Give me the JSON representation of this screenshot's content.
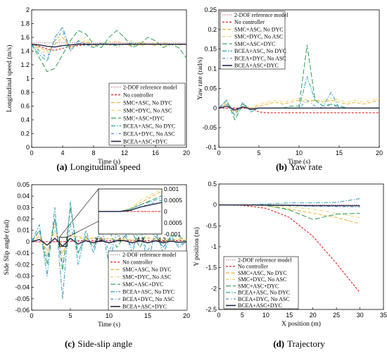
{
  "legend_labels": [
    "2-DOF reference model",
    "No controller",
    "SMC+ASC, No DYC",
    "SMC+DYC, No ASC",
    "SMC+ASC+DYC",
    "BCEA+ASC, No DYC",
    "BCEA+DYC, No ASC",
    "BCEA+ASC+DYC"
  ],
  "series_colors": [
    "#c06080",
    "#e02020",
    "#f0b030",
    "#f0d060",
    "#3aa860",
    "#2e9ec0",
    "#4a8fd0",
    "#202a48"
  ],
  "chart_data": [
    {
      "type": "line",
      "caption_tag": "(a)",
      "caption_text": "Longitudinal speed",
      "xlabel": "Time (s)",
      "ylabel": "Longitudinal speed (m/s)",
      "xlim": [
        0,
        20
      ],
      "ylim": [
        0,
        2
      ],
      "xticks": [
        "0",
        "4",
        "8",
        "12",
        "16",
        "20"
      ],
      "yticks": [
        "0",
        "0.2",
        "0.4",
        "0.6",
        "0.8",
        "1",
        "1.2",
        "1.4",
        "1.6",
        "1.8",
        "2"
      ],
      "legend_position": "lower-right",
      "x": [
        0,
        1,
        2,
        3,
        4,
        5,
        6,
        7,
        8,
        9,
        10,
        11,
        12,
        13,
        14,
        15,
        16,
        17,
        18,
        19,
        20
      ],
      "series": [
        {
          "values": [
            1.52,
            1.52,
            1.52,
            1.52,
            1.52,
            1.52,
            1.52,
            1.52,
            1.52,
            1.52,
            1.52,
            1.52,
            1.52,
            1.52,
            1.52,
            1.52,
            1.52,
            1.52,
            1.52,
            1.52,
            1.52
          ]
        },
        {
          "values": [
            1.5,
            1.47,
            1.43,
            1.41,
            1.44,
            1.47,
            1.48,
            1.49,
            1.5,
            1.5,
            1.5,
            1.5,
            1.5,
            1.5,
            1.5,
            1.5,
            1.5,
            1.5,
            1.5,
            1.5,
            1.5
          ]
        },
        {
          "values": [
            1.5,
            1.45,
            1.4,
            1.5,
            1.6,
            1.45,
            1.5,
            1.55,
            1.45,
            1.52,
            1.48,
            1.55,
            1.5,
            1.47,
            1.53,
            1.5,
            1.48,
            1.52,
            1.5,
            1.49,
            1.5
          ]
        },
        {
          "values": [
            1.5,
            1.42,
            1.35,
            1.55,
            1.65,
            1.4,
            1.55,
            1.6,
            1.45,
            1.5,
            1.55,
            1.45,
            1.5,
            1.55,
            1.48,
            1.5,
            1.52,
            1.47,
            1.5,
            1.5,
            1.5
          ]
        },
        {
          "values": [
            1.5,
            1.3,
            1.1,
            1.15,
            1.35,
            1.55,
            1.7,
            1.65,
            1.5,
            1.45,
            1.6,
            1.7,
            1.6,
            1.45,
            1.5,
            1.6,
            1.55,
            1.45,
            1.5,
            1.45,
            1.3
          ]
        },
        {
          "values": [
            1.5,
            1.35,
            1.25,
            1.6,
            1.75,
            1.4,
            1.55,
            1.5,
            1.45,
            1.52,
            1.5,
            1.48,
            1.5,
            1.52,
            1.5,
            1.5,
            1.5,
            1.5,
            1.5,
            1.5,
            1.5
          ]
        },
        {
          "values": [
            1.5,
            1.4,
            1.3,
            1.55,
            1.7,
            1.42,
            1.52,
            1.48,
            1.5,
            1.5,
            1.5,
            1.5,
            1.5,
            1.5,
            1.5,
            1.5,
            1.5,
            1.5,
            1.5,
            1.5,
            1.5
          ]
        },
        {
          "values": [
            1.5,
            1.49,
            1.47,
            1.46,
            1.48,
            1.49,
            1.5,
            1.5,
            1.5,
            1.5,
            1.5,
            1.5,
            1.5,
            1.5,
            1.5,
            1.5,
            1.5,
            1.5,
            1.5,
            1.5,
            1.5
          ]
        }
      ]
    },
    {
      "type": "line",
      "caption_tag": "(b)",
      "caption_text": "Yaw rate",
      "xlabel": "Time (s)",
      "ylabel": "Yaw rate (rad/s)",
      "xlim": [
        0,
        20
      ],
      "ylim": [
        -0.1,
        0.25
      ],
      "xticks": [
        "0",
        "5",
        "10",
        "15",
        "20"
      ],
      "yticks": [
        "-0.1",
        "-0.05",
        "0",
        "0.05",
        "0.1",
        "0.15",
        "0.2",
        "0.25"
      ],
      "legend_position": "top-left",
      "x": [
        0,
        1,
        2,
        3,
        4,
        5,
        6,
        7,
        8,
        9,
        10,
        11,
        12,
        13,
        14,
        15,
        16,
        17,
        18,
        19,
        20
      ],
      "series": [
        {
          "values": [
            0,
            0,
            0,
            0,
            0,
            0,
            0,
            0,
            0,
            0,
            0,
            0,
            0,
            0,
            0,
            0,
            0,
            0,
            0,
            0,
            0
          ]
        },
        {
          "values": [
            0,
            0,
            0,
            0,
            0,
            -0.01,
            -0.012,
            -0.012,
            -0.012,
            -0.012,
            -0.012,
            -0.012,
            -0.012,
            -0.012,
            -0.012,
            -0.012,
            -0.012,
            -0.012,
            -0.012,
            -0.012,
            -0.012
          ]
        },
        {
          "values": [
            0,
            0.01,
            -0.01,
            0.005,
            0,
            0.005,
            0.01,
            0.015,
            0.01,
            0.015,
            0.02,
            0.015,
            0.02,
            0.015,
            0.02,
            0.015,
            0.01,
            0.015,
            0.01,
            0.015,
            0.02
          ]
        },
        {
          "values": [
            0,
            0.015,
            -0.015,
            0.01,
            0,
            0.01,
            0.015,
            0.02,
            0.015,
            0.02,
            0.025,
            0.02,
            0.02,
            0.02,
            0.025,
            0.02,
            0.015,
            0.02,
            0.015,
            0.02,
            0.025
          ]
        },
        {
          "values": [
            0,
            0.02,
            -0.03,
            0.01,
            -0.005,
            0,
            0,
            0,
            0,
            0.005,
            0.005,
            0.16,
            0.02,
            0.005,
            0.01,
            0.005,
            0,
            0,
            0,
            0,
            0
          ]
        },
        {
          "values": [
            0,
            0.02,
            -0.02,
            0.015,
            -0.01,
            0,
            0,
            0,
            0,
            0,
            0,
            0.08,
            0.02,
            0.005,
            0.04,
            0,
            0,
            0,
            0,
            0,
            0
          ]
        },
        {
          "values": [
            0,
            0.01,
            -0.01,
            0.01,
            -0.005,
            0,
            0,
            0,
            0,
            0,
            0,
            0.02,
            0.005,
            0,
            0.01,
            0,
            0,
            0,
            0,
            0,
            0
          ]
        },
        {
          "values": [
            0,
            0.005,
            -0.005,
            0.003,
            -0.003,
            0,
            0,
            0,
            0,
            0,
            0,
            0,
            0,
            0,
            0,
            0,
            0,
            0,
            0,
            0,
            0
          ]
        }
      ]
    },
    {
      "type": "line",
      "caption_tag": "(c)",
      "caption_text": "Side-slip angle",
      "xlabel": "Time (s)",
      "ylabel": "Side Slip angle (rad)",
      "xlim": [
        0,
        20
      ],
      "ylim": [
        -0.06,
        0.05
      ],
      "xticks": [
        "0",
        "5",
        "10",
        "15",
        "20"
      ],
      "yticks": [
        "-0.06",
        "-0.05",
        "-0.04",
        "-0.03",
        "-0.02",
        "-0.01",
        "0",
        "0.01",
        "0.02",
        "0.03",
        "0.04",
        "0.05"
      ],
      "legend_position": "lower-right",
      "inset": {
        "xlim": [
          3.9,
          4.2
        ],
        "ylim": [
          -0.001,
          0.001
        ],
        "xticks": [
          "3.9",
          "4",
          "4.1",
          "4.2"
        ],
        "yticks": [
          "-0.001",
          "0.0005",
          "0",
          "0.0005",
          "0.001"
        ]
      },
      "x": [
        0,
        1,
        2,
        3,
        4,
        5,
        6,
        7,
        8,
        9,
        10,
        11,
        12,
        13,
        14,
        15,
        16,
        17,
        18,
        19,
        20
      ],
      "series": [
        {
          "values": [
            0,
            0,
            0,
            0,
            0,
            0,
            0,
            0,
            0,
            0,
            0,
            0,
            0,
            0,
            0,
            0,
            0,
            0,
            0,
            0,
            0
          ]
        },
        {
          "values": [
            0,
            0,
            0,
            0,
            0,
            0.0005,
            0.0008,
            0.001,
            0.001,
            0.001,
            0.001,
            0.001,
            0.001,
            0.001,
            0.001,
            0.001,
            0.001,
            0.001,
            0.001,
            0.001,
            0.001
          ]
        },
        {
          "values": [
            0,
            0.005,
            -0.008,
            0.01,
            -0.01,
            0.005,
            0.004,
            0.002,
            0.003,
            0.002,
            0.003,
            0.001,
            0.002,
            0.001,
            0.002,
            0.003,
            0.002,
            0.001,
            0.001,
            0.002,
            0.001
          ]
        },
        {
          "values": [
            0,
            0.008,
            -0.012,
            0.015,
            -0.015,
            0.008,
            0.005,
            0.003,
            0.004,
            0.002,
            0.003,
            0.002,
            0.003,
            0.002,
            0.003,
            0.004,
            0.003,
            0.002,
            0.002,
            0.003,
            0.002
          ]
        },
        {
          "values": [
            0,
            0.01,
            -0.02,
            0.02,
            -0.025,
            0.03,
            -0.01,
            0.005,
            -0.005,
            0.01,
            0.01,
            -0.005,
            0.005,
            0.008,
            -0.005,
            0.01,
            0.005,
            -0.005,
            0.005,
            0.005,
            0
          ]
        },
        {
          "values": [
            0,
            0.015,
            -0.03,
            0.03,
            -0.05,
            0.035,
            -0.02,
            0.01,
            -0.01,
            0.015,
            -0.02,
            0.01,
            0.01,
            -0.01,
            0.015,
            -0.02,
            0.01,
            -0.01,
            0.005,
            -0.005,
            0
          ]
        },
        {
          "values": [
            0,
            0.01,
            -0.015,
            0.02,
            -0.02,
            0.015,
            -0.01,
            0.005,
            -0.005,
            0.008,
            -0.008,
            0.005,
            0.005,
            -0.005,
            0.006,
            -0.008,
            0.005,
            -0.005,
            0.003,
            -0.003,
            0
          ]
        },
        {
          "values": [
            0,
            0.002,
            -0.003,
            0.003,
            -0.004,
            0.003,
            -0.002,
            0.001,
            -0.001,
            0.001,
            -0.001,
            0.001,
            0.001,
            -0.001,
            0.001,
            -0.001,
            0.001,
            -0.001,
            0.0005,
            -0.0005,
            0
          ]
        }
      ]
    },
    {
      "type": "line",
      "caption_tag": "(d)",
      "caption_text": "Trajectory",
      "xlabel": "X position (m)",
      "ylabel": "Y position (m)",
      "xlim": [
        0,
        35
      ],
      "ylim": [
        -2.5,
        0.5
      ],
      "xticks": [
        "0",
        "5",
        "10",
        "15",
        "20",
        "25",
        "30",
        "35"
      ],
      "yticks": [
        "-2.5",
        "-2",
        "-1.5",
        "-1",
        "-0.5",
        "0",
        "0.5"
      ],
      "legend_position": "lower-left",
      "x": [
        0,
        5,
        10,
        15,
        20,
        25,
        30
      ],
      "series": [
        {
          "values": [
            0,
            0,
            0,
            0,
            0,
            0,
            0
          ]
        },
        {
          "values": [
            0,
            -0.01,
            -0.08,
            -0.3,
            -0.75,
            -1.4,
            -2.1
          ]
        },
        {
          "values": [
            0,
            0,
            -0.02,
            -0.1,
            -0.2,
            -0.3,
            -0.45
          ]
        },
        {
          "values": [
            0,
            0,
            -0.01,
            -0.05,
            -0.1,
            -0.2,
            -0.3
          ]
        },
        {
          "values": [
            0,
            0,
            -0.01,
            -0.12,
            -0.35,
            -0.22,
            -0.2
          ]
        },
        {
          "values": [
            0,
            0,
            0.02,
            0.05,
            0.05,
            0.06,
            0.15
          ]
        },
        {
          "values": [
            0,
            0,
            -0.01,
            -0.02,
            -0.03,
            -0.04,
            -0.05
          ]
        },
        {
          "values": [
            0,
            0,
            -0.005,
            -0.01,
            -0.02,
            -0.02,
            -0.02
          ]
        }
      ]
    }
  ]
}
